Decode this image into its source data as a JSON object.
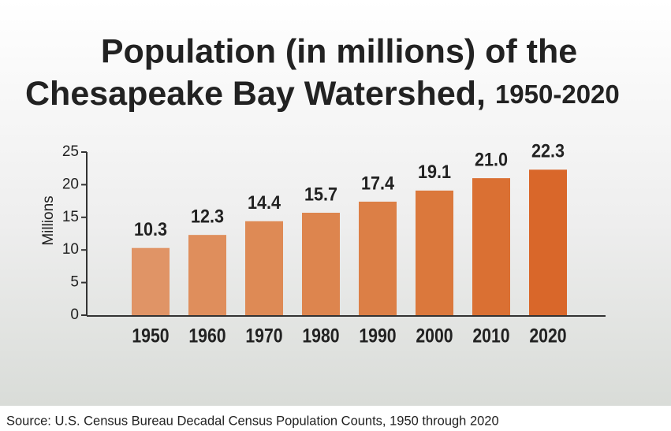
{
  "chart_data": {
    "type": "bar",
    "title_lines": [
      "Population (in millions) of the",
      "Chesapeake Bay Watershed,"
    ],
    "subtitle": "1950-2020",
    "y_label": "Millions",
    "source": "Source: U.S. Census Bureau Decadal Census Population Counts, 1950 through 2020",
    "categories": [
      "1950",
      "1960",
      "1970",
      "1980",
      "1990",
      "2000",
      "2010",
      "2020"
    ],
    "values": [
      10.3,
      12.3,
      14.4,
      15.7,
      17.4,
      19.1,
      21.0,
      22.3
    ],
    "value_labels": [
      "10.3",
      "12.3",
      "14.4",
      "15.7",
      "17.4",
      "19.1",
      "21.0",
      "22.3"
    ],
    "colors": [
      "#e09466",
      "#df8e5c",
      "#de8a55",
      "#dd854e",
      "#dc7f46",
      "#db783c",
      "#da7033",
      "#d9672a"
    ],
    "ylim": [
      0,
      25
    ],
    "yticks": [
      0,
      5,
      10,
      15,
      20,
      25
    ]
  }
}
